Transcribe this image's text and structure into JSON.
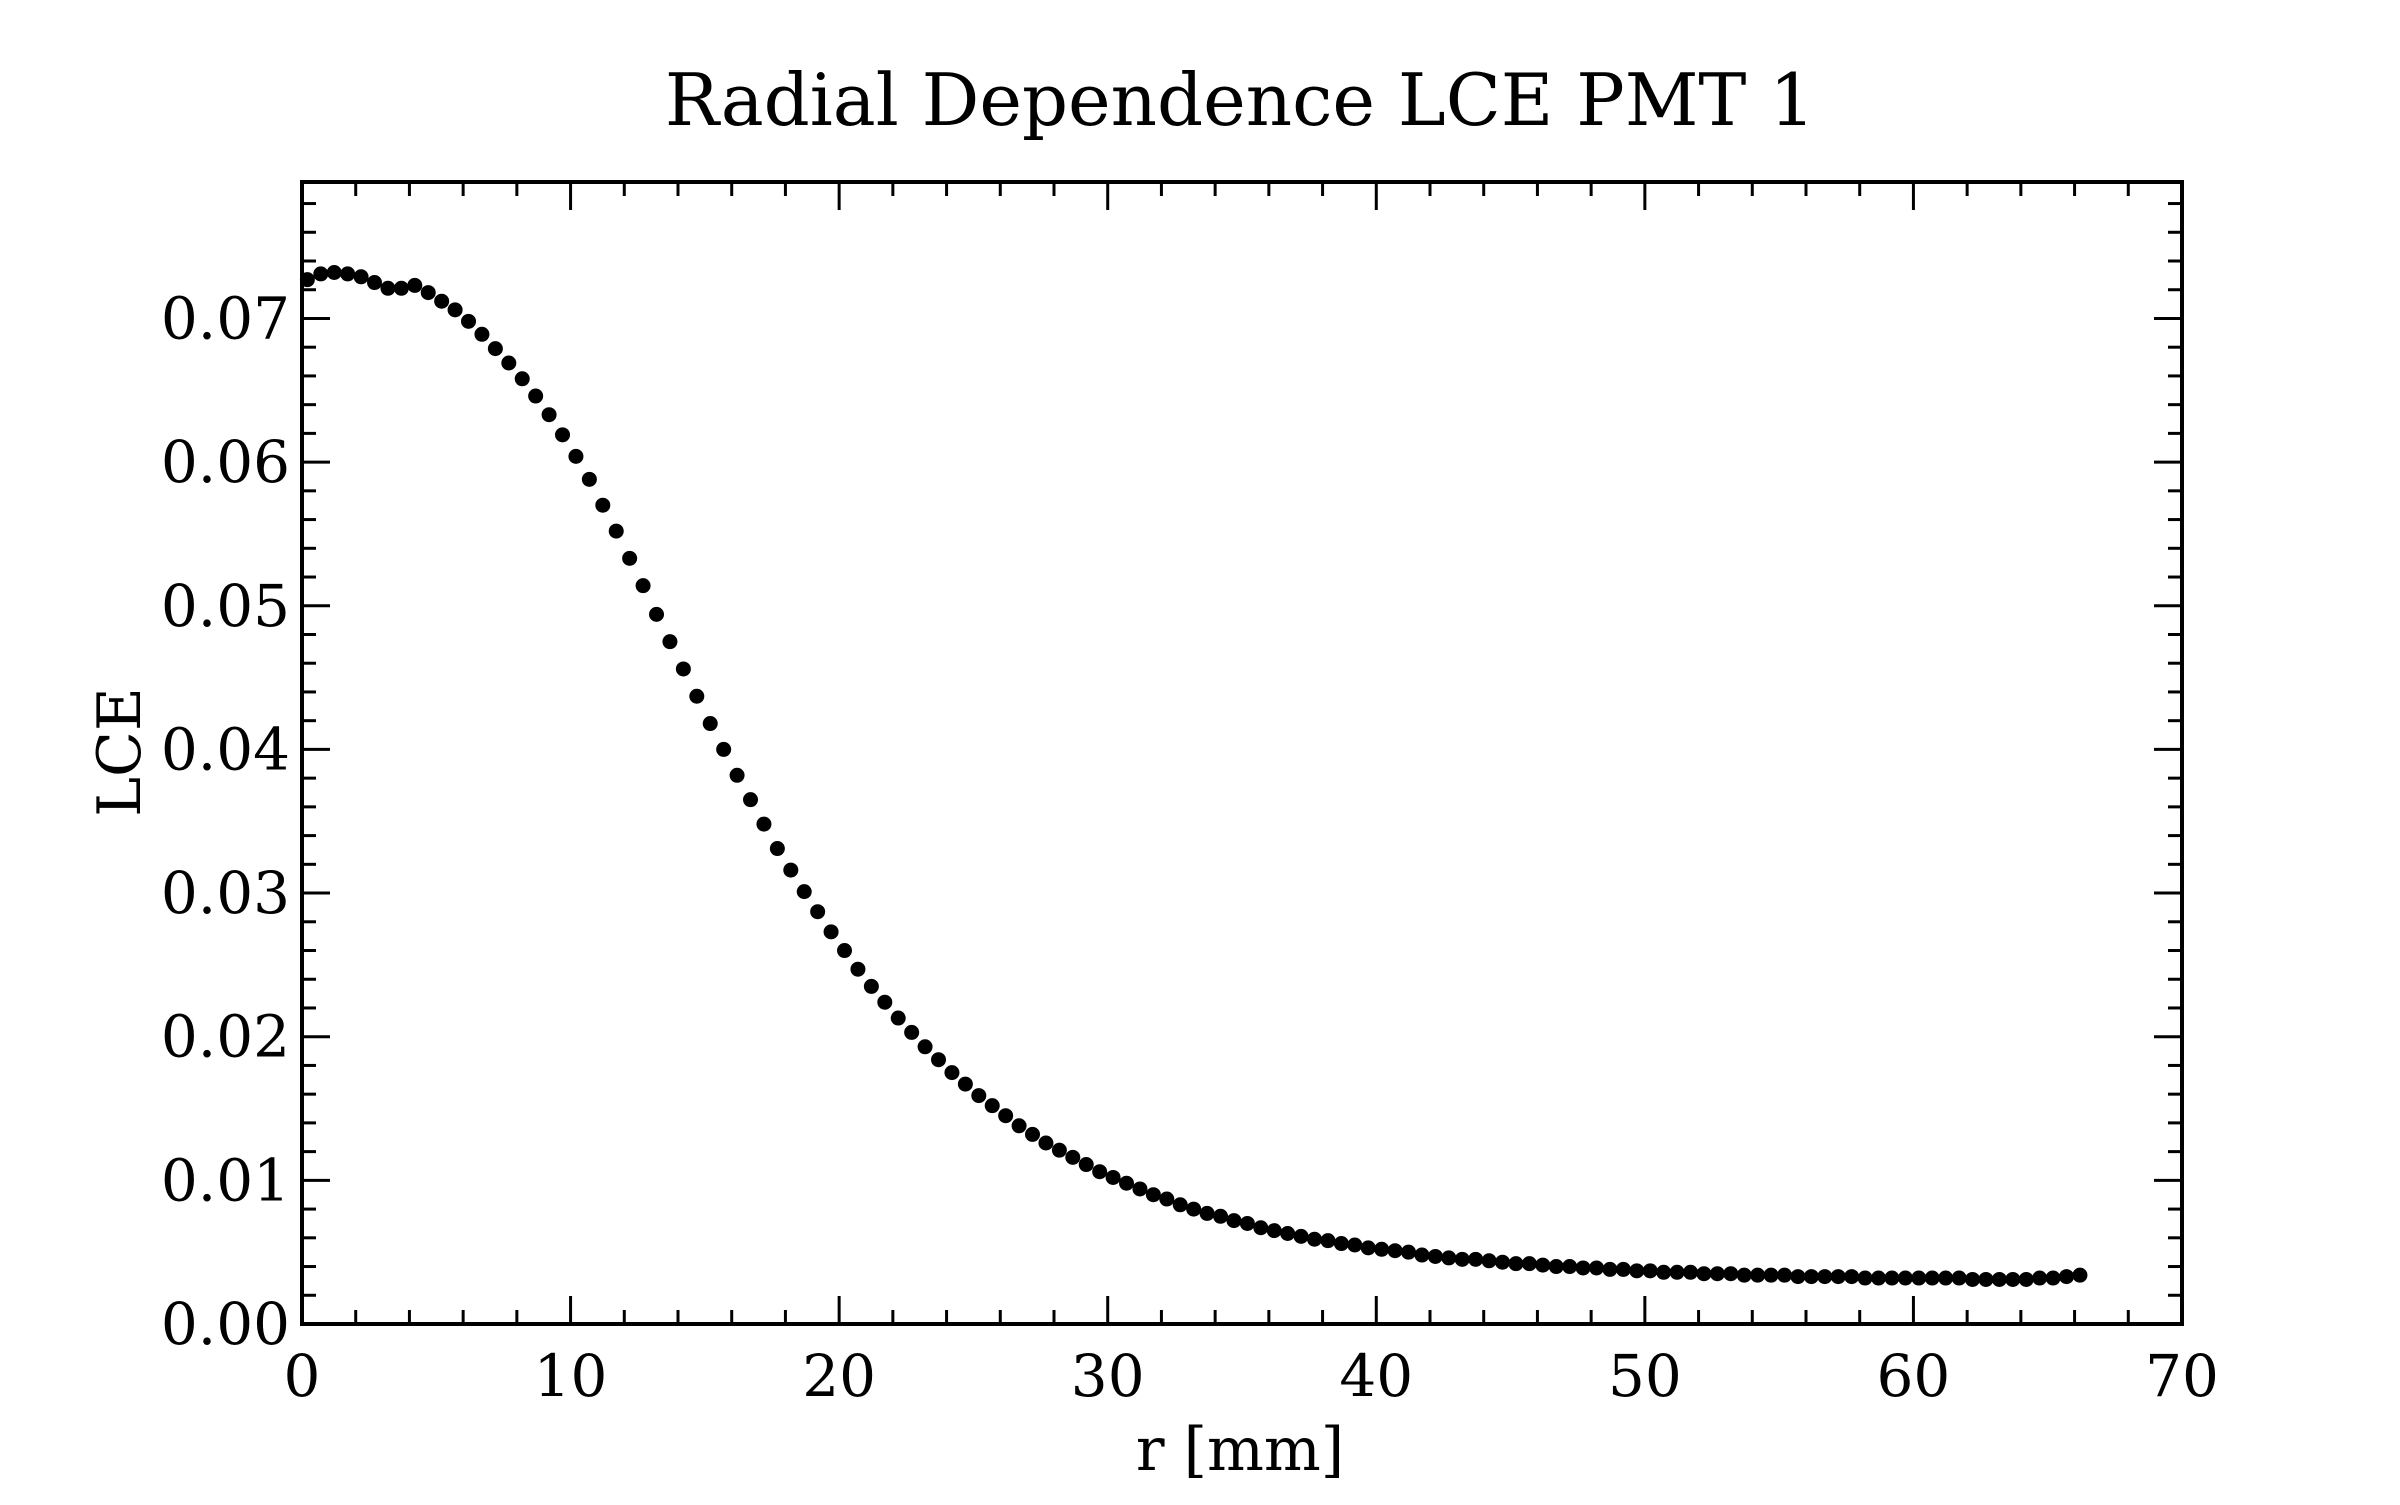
{
  "chart_data": {
    "type": "scatter",
    "title": "Radial Dependence LCE PMT 1",
    "xlabel": "r [mm]",
    "ylabel": "LCE",
    "xlim": [
      0,
      70
    ],
    "ylim": [
      0,
      0.0795
    ],
    "grid": false,
    "legend": "none",
    "x_ticks": [
      "0",
      "10",
      "20",
      "30",
      "40",
      "50",
      "60",
      "70"
    ],
    "y_ticks": [
      "0.00",
      "0.01",
      "0.02",
      "0.03",
      "0.04",
      "0.05",
      "0.06",
      "0.07"
    ],
    "marker_color": "#000000",
    "series": [
      {
        "x": [
          0.2,
          0.7,
          1.2,
          1.7,
          2.2,
          2.7,
          3.2,
          3.7,
          4.2,
          4.7,
          5.2,
          5.7,
          6.2,
          6.7,
          7.2,
          7.7,
          8.2,
          8.7,
          9.2,
          9.7,
          10.2,
          10.7,
          11.2,
          11.7,
          12.2,
          12.7,
          13.2,
          13.7,
          14.2,
          14.7,
          15.2,
          15.7,
          16.2,
          16.7,
          17.2,
          17.7,
          18.2,
          18.7,
          19.2,
          19.7,
          20.2,
          20.7,
          21.2,
          21.7,
          22.2,
          22.7,
          23.2,
          23.7,
          24.2,
          24.7,
          25.2,
          25.7,
          26.2,
          26.7,
          27.2,
          27.7,
          28.2,
          28.7,
          29.2,
          29.7,
          30.2,
          30.7,
          31.2,
          31.7,
          32.2,
          32.7,
          33.2,
          33.7,
          34.2,
          34.7,
          35.2,
          35.7,
          36.2,
          36.7,
          37.2,
          37.7,
          38.2,
          38.7,
          39.2,
          39.7,
          40.2,
          40.7,
          41.2,
          41.7,
          42.2,
          42.7,
          43.2,
          43.7,
          44.2,
          44.7,
          45.2,
          45.7,
          46.2,
          46.7,
          47.2,
          47.7,
          48.2,
          48.7,
          49.2,
          49.7,
          50.2,
          50.7,
          51.2,
          51.7,
          52.2,
          52.7,
          53.2,
          53.7,
          54.2,
          54.7,
          55.2,
          55.7,
          56.2,
          56.7,
          57.2,
          57.7,
          58.2,
          58.7,
          59.2,
          59.7,
          60.2,
          60.7,
          61.2,
          61.7,
          62.2,
          62.7,
          63.2,
          63.7,
          64.2,
          64.7,
          65.2,
          65.7,
          66.2
        ],
        "y": [
          0.0727,
          0.0731,
          0.0732,
          0.0731,
          0.0729,
          0.0725,
          0.0721,
          0.0721,
          0.0723,
          0.0718,
          0.0712,
          0.0706,
          0.0698,
          0.0689,
          0.0679,
          0.0669,
          0.0658,
          0.0646,
          0.0633,
          0.0619,
          0.0604,
          0.0588,
          0.057,
          0.0552,
          0.0533,
          0.0514,
          0.0494,
          0.0475,
          0.0456,
          0.0437,
          0.0418,
          0.04,
          0.0382,
          0.0365,
          0.0348,
          0.0331,
          0.0316,
          0.0301,
          0.0287,
          0.0273,
          0.026,
          0.0247,
          0.0235,
          0.0224,
          0.0213,
          0.0203,
          0.0193,
          0.0184,
          0.0175,
          0.0167,
          0.0159,
          0.0152,
          0.0145,
          0.0138,
          0.0132,
          0.0126,
          0.0121,
          0.0116,
          0.0111,
          0.0106,
          0.0102,
          0.0098,
          0.0094,
          0.009,
          0.0087,
          0.0083,
          0.008,
          0.0077,
          0.0075,
          0.0072,
          0.007,
          0.0067,
          0.0065,
          0.0063,
          0.0061,
          0.0059,
          0.0058,
          0.0056,
          0.0055,
          0.0053,
          0.0052,
          0.0051,
          0.005,
          0.0048,
          0.0047,
          0.0046,
          0.0045,
          0.0045,
          0.0044,
          0.0043,
          0.0042,
          0.0042,
          0.0041,
          0.004,
          0.004,
          0.0039,
          0.0039,
          0.0038,
          0.0038,
          0.0037,
          0.0037,
          0.0036,
          0.0036,
          0.0036,
          0.0035,
          0.0035,
          0.0035,
          0.0034,
          0.0034,
          0.0034,
          0.0034,
          0.0033,
          0.0033,
          0.0033,
          0.0033,
          0.0033,
          0.0032,
          0.0032,
          0.0032,
          0.0032,
          0.0032,
          0.0032,
          0.0032,
          0.0032,
          0.0031,
          0.0031,
          0.0031,
          0.0031,
          0.0031,
          0.0032,
          0.0032,
          0.0033,
          0.0034
        ]
      }
    ]
  }
}
